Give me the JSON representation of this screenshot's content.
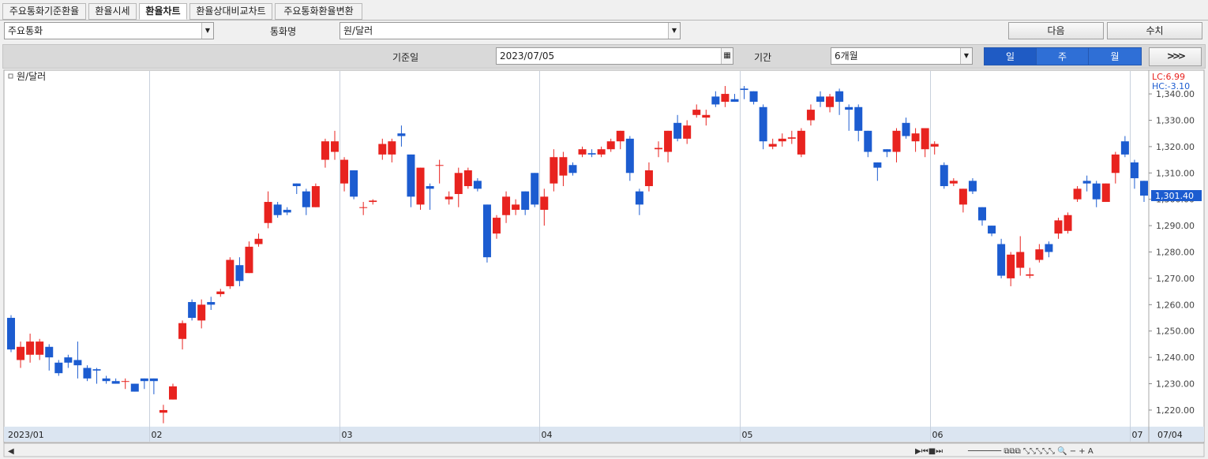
{
  "tabs": [
    "주요통화기준환율",
    "환율시세",
    "환율차트",
    "환율상대비교차트",
    "주요통화환율변환"
  ],
  "controls": {
    "currency_group": "주요통화",
    "currency_label": "통화명",
    "currency": "원/달러",
    "next_button": "다음",
    "values_button": "수치",
    "date_label": "기준일",
    "date": "2023/07/05",
    "period_label": "기간",
    "period": "6개월",
    "period_buttons": [
      "일",
      "주",
      "월"
    ]
  },
  "chart_data": {
    "type": "candlestick",
    "legend": "원/달러",
    "categories": [
      "2023/01",
      null,
      null,
      null,
      null,
      null,
      null,
      null,
      null,
      null,
      null,
      null,
      null,
      null,
      null,
      "02",
      null,
      null,
      null,
      null,
      null,
      null,
      null,
      null,
      null,
      null,
      null,
      null,
      null,
      null,
      null,
      null,
      null,
      null,
      null,
      "03",
      null,
      null,
      null,
      null,
      null,
      null,
      null,
      null,
      null,
      null,
      null,
      null,
      null,
      null,
      null,
      null,
      null,
      null,
      null,
      null,
      "04",
      null,
      null,
      null,
      null,
      null,
      null,
      null,
      null,
      null,
      null,
      null,
      null,
      null,
      null,
      null,
      null,
      null,
      null,
      null,
      null,
      "05",
      null,
      null,
      null,
      null,
      null,
      null,
      null,
      null,
      null,
      null,
      null,
      null,
      null,
      null,
      null,
      null,
      null,
      null,
      null,
      "06",
      null,
      null,
      null,
      null,
      null,
      null,
      null,
      null,
      null,
      null,
      null,
      null,
      null,
      null,
      null,
      null,
      null,
      null,
      null,
      null,
      "07",
      null
    ],
    "open": [
      1255,
      1239,
      1241,
      1241,
      1244,
      1238,
      1240,
      1239,
      1236,
      1235.5,
      1232,
      1231,
      1231,
      1230,
      1232,
      1232,
      1219,
      1224,
      1247,
      1261,
      1254,
      1261,
      1264,
      1267,
      1275,
      1272,
      1283,
      1291,
      1298,
      1296,
      1306,
      1303,
      1297,
      1315,
      1318,
      1306,
      1311,
      1297,
      1299,
      1317,
      1317,
      1325,
      1317,
      1298,
      1305,
      1313,
      1300,
      1302,
      1305,
      1307,
      1298,
      1287,
      1294,
      1296,
      1303,
      1310,
      1296,
      1306,
      1309,
      1313,
      1317,
      1317.5,
      1317,
      1319,
      1322,
      1323,
      1303,
      1305,
      1319,
      1318,
      1329,
      1323,
      1332,
      1331,
      1339,
      1337,
      1338,
      1342,
      1341,
      1335,
      1320,
      1322,
      1323,
      1317,
      1330,
      1339,
      1335,
      1341,
      1335,
      1335,
      1326,
      1314,
      1319,
      1318,
      1329,
      1322,
      1319,
      1320,
      1313,
      1306,
      1298,
      1307,
      1297,
      1290,
      1283,
      1270,
      1274,
      1271,
      1277,
      1283,
      1287,
      1288,
      1300,
      1307,
      1306,
      1299,
      1310,
      1322,
      1314,
      1307
    ],
    "high": [
      1256,
      1246,
      1249,
      1247,
      1245,
      1239,
      1241,
      1246,
      1237,
      1236,
      1233,
      1232,
      1232,
      1230,
      1232,
      1232,
      1222,
      1230,
      1254,
      1262,
      1262,
      1263,
      1266,
      1278,
      1278,
      1284,
      1287,
      1303,
      1299,
      1297,
      1306,
      1304,
      1306,
      1323,
      1326,
      1316,
      1311,
      1299,
      1300,
      1323,
      1323,
      1328,
      1317,
      1312,
      1306,
      1315,
      1303,
      1312,
      1312,
      1308,
      1298,
      1294,
      1303,
      1300,
      1303,
      1310,
      1304,
      1319,
      1318,
      1314,
      1320,
      1319,
      1320,
      1323,
      1326,
      1324,
      1304,
      1314,
      1322,
      1326,
      1332,
      1330,
      1336,
      1334,
      1341,
      1343,
      1340,
      1343,
      1341,
      1336,
      1323,
      1325,
      1326,
      1327,
      1336,
      1341,
      1340,
      1342,
      1336,
      1336,
      1326,
      1314,
      1319,
      1327,
      1331,
      1327,
      1327,
      1322,
      1314,
      1308,
      1304,
      1308,
      1297,
      1290,
      1285,
      1280,
      1286,
      1274,
      1283,
      1284,
      1293,
      1295,
      1305,
      1309,
      1307,
      1306,
      1318,
      1324,
      1315,
      1307
    ],
    "low": [
      1242,
      1236,
      1238,
      1239,
      1235,
      1233,
      1236,
      1232,
      1231,
      1230,
      1230,
      1230,
      1228,
      1227,
      1228,
      1226,
      1215,
      1224,
      1243,
      1254,
      1251,
      1258,
      1263,
      1266,
      1267,
      1272,
      1282,
      1289,
      1293,
      1294,
      1302,
      1294,
      1297,
      1312,
      1315,
      1303,
      1300,
      1294,
      1298,
      1315,
      1314,
      1320,
      1297,
      1296,
      1296,
      1306,
      1298,
      1297,
      1304,
      1303,
      1276,
      1285,
      1291,
      1294,
      1294,
      1297,
      1290,
      1303,
      1305,
      1309,
      1316,
      1316,
      1316,
      1318,
      1319,
      1307,
      1294,
      1303,
      1316,
      1314,
      1322,
      1321,
      1331,
      1328,
      1335,
      1335,
      1337,
      1338,
      1336,
      1319,
      1319,
      1320,
      1321,
      1316,
      1328,
      1335,
      1333,
      1332,
      1326,
      1322,
      1316,
      1307,
      1316,
      1314,
      1323,
      1318,
      1316,
      1317,
      1304,
      1305,
      1295,
      1302,
      1290,
      1286,
      1270,
      1267,
      1271,
      1270,
      1276,
      1278,
      1285,
      1287,
      1299,
      1303,
      1297,
      1299,
      1306,
      1316,
      1304,
      1299
    ],
    "close": [
      1243,
      1244,
      1246,
      1246,
      1240,
      1234,
      1238,
      1237,
      1232,
      1235,
      1231,
      1230,
      1231,
      1227,
      1231,
      1231,
      1220,
      1229,
      1253,
      1255,
      1260,
      1260,
      1265,
      1277,
      1269,
      1282,
      1285,
      1299,
      1294,
      1295,
      1305,
      1297,
      1305,
      1322,
      1322,
      1315,
      1301,
      1297,
      1299.5,
      1321,
      1322,
      1324,
      1301,
      1312,
      1304,
      1313,
      1301,
      1310,
      1311,
      1304,
      1278,
      1293,
      1301,
      1298,
      1296,
      1298,
      1301,
      1316,
      1316,
      1310,
      1319,
      1317,
      1319,
      1322,
      1326,
      1310,
      1298,
      1311,
      1319.5,
      1326,
      1323,
      1328,
      1334,
      1332,
      1336,
      1340,
      1337,
      1341.5,
      1337,
      1322,
      1321,
      1323,
      1323.5,
      1326,
      1334,
      1337,
      1339,
      1337,
      1334,
      1326,
      1318,
      1312,
      1318,
      1326,
      1324,
      1325,
      1327,
      1321,
      1305,
      1307,
      1304,
      1303,
      1292,
      1287,
      1271,
      1279,
      1280,
      1271.5,
      1281,
      1280,
      1292,
      1294,
      1304,
      1306,
      1300,
      1306,
      1317,
      1317,
      1308,
      1301.4
    ],
    "up_color": "#e8231f",
    "down_color": "#1c5cd0",
    "ylim": [
      1213.7,
      1348.7
    ],
    "yticks": [
      {
        "value": 1220,
        "label": "1,220.00"
      },
      {
        "value": 1230,
        "label": "1,230.00"
      },
      {
        "value": 1240,
        "label": "1,240.00"
      },
      {
        "value": 1250,
        "label": "1,250.00"
      },
      {
        "value": 1260,
        "label": "1,260.00"
      },
      {
        "value": 1270,
        "label": "1,270.00"
      },
      {
        "value": 1280,
        "label": "1,280.00"
      },
      {
        "value": 1290,
        "label": "1,290.00"
      },
      {
        "value": 1300,
        "label": "1,300.00"
      },
      {
        "value": 1310,
        "label": "1,310.00"
      },
      {
        "value": 1320,
        "label": "1,320.00"
      },
      {
        "value": 1330,
        "label": "1,330.00"
      },
      {
        "value": 1340,
        "label": "1,340.00"
      }
    ],
    "last_price": {
      "value": 1301.4,
      "label": "1,301.40"
    },
    "lc_label": "LC:6.99",
    "hc_label": "HC:-3.10",
    "last_date_label": "07/04",
    "grid": true
  }
}
